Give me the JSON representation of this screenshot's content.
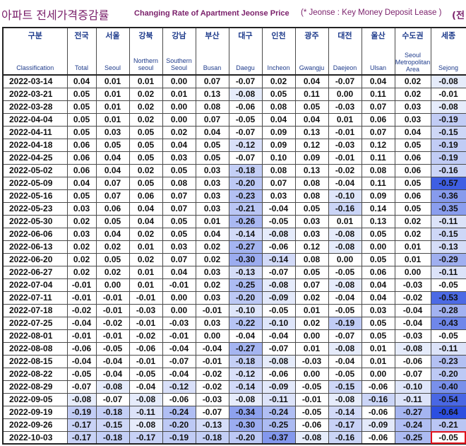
{
  "title": {
    "korean": "아파트 전세가격증감률",
    "english": "Changing Rate of Apartment Jeonse Price",
    "note": "(* Jeonse : Key Money Deposit Lease )",
    "cut_fragment": "(전"
  },
  "columns": [
    {
      "ko": "구분",
      "en": "Classification"
    },
    {
      "ko": "전국",
      "en": "Total"
    },
    {
      "ko": "서울",
      "en": "Seoul"
    },
    {
      "ko": "강북",
      "en": "Northern seoul"
    },
    {
      "ko": "강남",
      "en": "Southern Seoul"
    },
    {
      "ko": "부산",
      "en": "Busan"
    },
    {
      "ko": "대구",
      "en": "Daegu"
    },
    {
      "ko": "인천",
      "en": "Incheon"
    },
    {
      "ko": "광주",
      "en": "Gwangju"
    },
    {
      "ko": "대전",
      "en": "Daejeon"
    },
    {
      "ko": "울산",
      "en": "Ulsan"
    },
    {
      "ko": "수도권",
      "en": "Seoul Metropolitan Area"
    },
    {
      "ko": "세종",
      "en": "Sejong"
    }
  ],
  "rows": [
    {
      "date": "2022-03-14",
      "v": [
        "0.04",
        "0.01",
        "0.01",
        "0.00",
        "0.07",
        "-0.07",
        "0.02",
        "0.04",
        "-0.07",
        "0.04",
        "0.02",
        "-0.08"
      ]
    },
    {
      "date": "2022-03-21",
      "v": [
        "0.05",
        "0.01",
        "0.02",
        "0.01",
        "0.13",
        "-0.08",
        "0.05",
        "0.11",
        "0.00",
        "0.11",
        "0.02",
        "-0.01"
      ]
    },
    {
      "date": "2022-03-28",
      "v": [
        "0.05",
        "0.01",
        "0.02",
        "0.00",
        "0.08",
        "-0.06",
        "0.08",
        "0.05",
        "-0.03",
        "0.07",
        "0.03",
        "-0.08"
      ]
    },
    {
      "date": "2022-04-04",
      "v": [
        "0.05",
        "0.01",
        "0.02",
        "0.00",
        "0.07",
        "-0.05",
        "0.04",
        "0.04",
        "0.01",
        "0.06",
        "0.03",
        "-0.19"
      ]
    },
    {
      "date": "2022-04-11",
      "v": [
        "0.05",
        "0.03",
        "0.05",
        "0.02",
        "0.04",
        "-0.07",
        "0.09",
        "0.13",
        "-0.01",
        "0.07",
        "0.04",
        "-0.15"
      ]
    },
    {
      "date": "2022-04-18",
      "v": [
        "0.06",
        "0.05",
        "0.05",
        "0.04",
        "0.05",
        "-0.12",
        "0.09",
        "0.12",
        "-0.03",
        "0.12",
        "0.05",
        "-0.19"
      ]
    },
    {
      "date": "2022-04-25",
      "v": [
        "0.06",
        "0.04",
        "0.05",
        "0.03",
        "0.05",
        "-0.07",
        "0.10",
        "0.09",
        "-0.01",
        "0.11",
        "0.06",
        "-0.19"
      ]
    },
    {
      "date": "2022-05-02",
      "v": [
        "0.06",
        "0.04",
        "0.02",
        "0.05",
        "0.03",
        "-0.18",
        "0.08",
        "0.13",
        "-0.02",
        "0.08",
        "0.06",
        "-0.16"
      ]
    },
    {
      "date": "2022-05-09",
      "v": [
        "0.04",
        "0.07",
        "0.05",
        "0.08",
        "0.03",
        "-0.20",
        "0.07",
        "0.08",
        "-0.04",
        "0.11",
        "0.05",
        "-0.57"
      ]
    },
    {
      "date": "2022-05-16",
      "v": [
        "0.05",
        "0.07",
        "0.06",
        "0.07",
        "0.03",
        "-0.23",
        "0.03",
        "0.08",
        "-0.10",
        "0.09",
        "0.06",
        "-0.36"
      ]
    },
    {
      "date": "2022-05-23",
      "v": [
        "0.03",
        "0.06",
        "0.04",
        "0.07",
        "0.03",
        "-0.21",
        "-0.04",
        "0.05",
        "-0.16",
        "0.14",
        "0.05",
        "-0.35"
      ]
    },
    {
      "date": "2022-05-30",
      "v": [
        "0.02",
        "0.05",
        "0.04",
        "0.05",
        "0.01",
        "-0.26",
        "-0.05",
        "0.03",
        "0.01",
        "0.13",
        "0.02",
        "-0.11"
      ]
    },
    {
      "date": "2022-06-06",
      "v": [
        "0.03",
        "0.04",
        "0.02",
        "0.05",
        "0.04",
        "-0.14",
        "-0.08",
        "0.03",
        "-0.08",
        "0.05",
        "0.02",
        "-0.15"
      ]
    },
    {
      "date": "2022-06-13",
      "v": [
        "0.02",
        "0.02",
        "0.01",
        "0.03",
        "0.02",
        "-0.27",
        "-0.06",
        "0.12",
        "-0.08",
        "0.00",
        "0.01",
        "-0.13"
      ]
    },
    {
      "date": "2022-06-20",
      "v": [
        "0.02",
        "0.05",
        "0.02",
        "0.07",
        "0.02",
        "-0.30",
        "-0.14",
        "0.08",
        "0.00",
        "0.05",
        "0.01",
        "-0.29"
      ]
    },
    {
      "date": "2022-06-27",
      "v": [
        "0.02",
        "0.02",
        "0.01",
        "0.04",
        "0.03",
        "-0.13",
        "-0.07",
        "0.05",
        "-0.05",
        "0.06",
        "0.00",
        "-0.11"
      ]
    },
    {
      "date": "2022-07-04",
      "v": [
        "-0.01",
        "0.00",
        "0.01",
        "-0.01",
        "0.02",
        "-0.25",
        "-0.08",
        "0.07",
        "-0.08",
        "0.04",
        "-0.03",
        "-0.05"
      ]
    },
    {
      "date": "2022-07-11",
      "v": [
        "-0.01",
        "-0.01",
        "-0.01",
        "0.00",
        "0.03",
        "-0.20",
        "-0.09",
        "0.02",
        "-0.04",
        "0.04",
        "-0.02",
        "-0.53"
      ]
    },
    {
      "date": "2022-07-18",
      "v": [
        "-0.02",
        "-0.01",
        "-0.03",
        "0.00",
        "-0.01",
        "-0.10",
        "-0.05",
        "0.01",
        "-0.05",
        "0.03",
        "-0.04",
        "-0.28"
      ]
    },
    {
      "date": "2022-07-25",
      "v": [
        "-0.04",
        "-0.02",
        "-0.01",
        "-0.03",
        "0.03",
        "-0.22",
        "-0.10",
        "0.02",
        "-0.19",
        "0.05",
        "-0.04",
        "-0.43"
      ]
    },
    {
      "date": "2022-08-01",
      "v": [
        "-0.01",
        "-0.01",
        "-0.02",
        "-0.01",
        "0.00",
        "-0.04",
        "-0.04",
        "0.00",
        "-0.07",
        "0.05",
        "-0.03",
        "-0.05"
      ]
    },
    {
      "date": "2022-08-08",
      "v": [
        "-0.06",
        "-0.05",
        "-0.06",
        "-0.04",
        "-0.04",
        "-0.27",
        "-0.07",
        "0.01",
        "-0.08",
        "0.01",
        "-0.08",
        "-0.11"
      ]
    },
    {
      "date": "2022-08-15",
      "v": [
        "-0.04",
        "-0.04",
        "-0.01",
        "-0.07",
        "-0.01",
        "-0.18",
        "-0.08",
        "-0.03",
        "-0.04",
        "0.01",
        "-0.06",
        "-0.23"
      ]
    },
    {
      "date": "2022-08-22",
      "v": [
        "-0.05",
        "-0.04",
        "-0.05",
        "-0.04",
        "-0.02",
        "-0.12",
        "-0.06",
        "0.00",
        "-0.05",
        "0.00",
        "-0.07",
        "-0.20"
      ]
    },
    {
      "date": "2022-08-29",
      "v": [
        "-0.07",
        "-0.08",
        "-0.04",
        "-0.12",
        "-0.02",
        "-0.14",
        "-0.09",
        "-0.05",
        "-0.15",
        "-0.06",
        "-0.10",
        "-0.40"
      ]
    },
    {
      "date": "2022-09-05",
      "v": [
        "-0.08",
        "-0.07",
        "-0.08",
        "-0.06",
        "-0.03",
        "-0.08",
        "-0.11",
        "-0.01",
        "-0.08",
        "-0.16",
        "-0.11",
        "-0.54"
      ]
    },
    {
      "date": "2022-09-19",
      "v": [
        "-0.19",
        "-0.18",
        "-0.11",
        "-0.24",
        "-0.07",
        "-0.34",
        "-0.24",
        "-0.05",
        "-0.14",
        "-0.06",
        "-0.27",
        "-0.64"
      ]
    },
    {
      "date": "2022-09-26",
      "v": [
        "-0.17",
        "-0.15",
        "-0.08",
        "-0.20",
        "-0.13",
        "-0.30",
        "-0.25",
        "-0.06",
        "-0.17",
        "-0.09",
        "-0.24",
        "-0.21"
      ]
    },
    {
      "date": "2022-10-03",
      "v": [
        "-0.17",
        "-0.18",
        "-0.17",
        "-0.19",
        "-0.18",
        "-0.20",
        "-0.37",
        "-0.08",
        "-0.16",
        "-0.06",
        "-0.25",
        "-0.05"
      ]
    }
  ],
  "highlighted_cell": {
    "row": 28,
    "col": 11
  },
  "colors": {
    "title": "#7a1f6a",
    "header_text": "#1f3c8c",
    "highlight_border": "#e0101a",
    "scale_light": "#e8edfb",
    "scale_dark": "#2c4fe0"
  }
}
